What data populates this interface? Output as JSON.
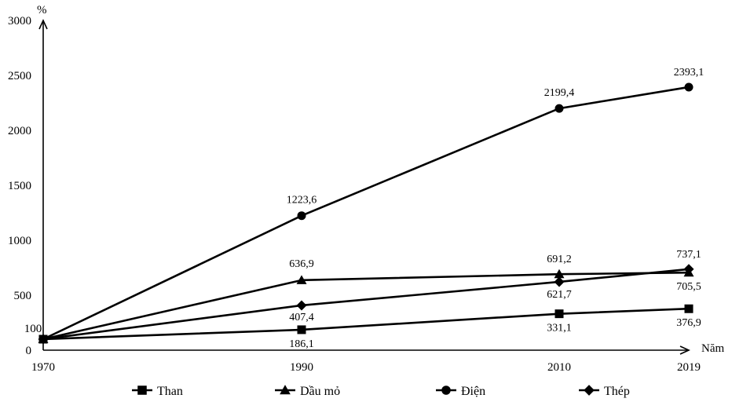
{
  "chart_data": {
    "type": "line",
    "y_unit": "%",
    "x_unit": "Năm",
    "x": [
      "1970",
      "1990",
      "2010",
      "2019"
    ],
    "ylim": [
      0,
      3000
    ],
    "y_ticks": [
      "0",
      "500",
      "1000",
      "1500",
      "2000",
      "2500",
      "3000"
    ],
    "grid": false,
    "legend_position": "bottom",
    "start_label": "100",
    "series": [
      {
        "name": "Than",
        "marker": "square",
        "values": [
          100,
          186.1,
          331.1,
          376.9
        ],
        "labels": [
          "",
          "186,1",
          "331,1",
          "376,9"
        ]
      },
      {
        "name": "Dầu mỏ",
        "marker": "triangle",
        "values": [
          100,
          636.9,
          691.2,
          705.5
        ],
        "labels": [
          "",
          "636,9",
          "691,2",
          "705,5"
        ]
      },
      {
        "name": "Điện",
        "marker": "circle",
        "values": [
          100,
          1223.6,
          2199.4,
          2393.1
        ],
        "labels": [
          "",
          "1223,6",
          "2199,4",
          "2393,1"
        ]
      },
      {
        "name": "Thép",
        "marker": "diamond",
        "values": [
          100,
          407.4,
          621.7,
          737.1
        ],
        "labels": [
          "",
          "407,4",
          "621,7",
          "737,1"
        ]
      }
    ]
  }
}
